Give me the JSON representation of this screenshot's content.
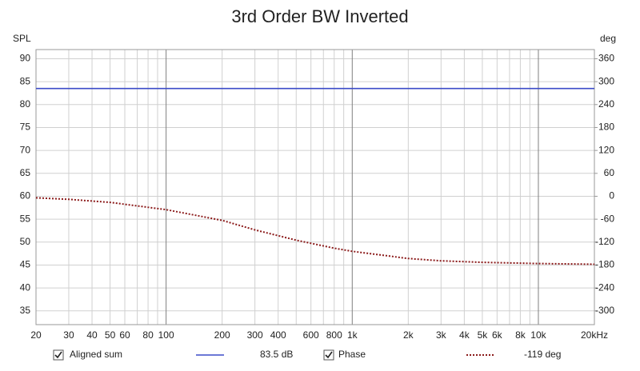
{
  "chart_data": {
    "type": "line",
    "title": "3rd Order BW Inverted",
    "y_label": "SPL",
    "y2_label": "deg",
    "log_x": true,
    "xlim": [
      20,
      20000
    ],
    "xticks": [
      20,
      30,
      40,
      50,
      60,
      80,
      100,
      200,
      300,
      400,
      600,
      800,
      {
        "value": 1000,
        "label": "1k"
      },
      {
        "value": 2000,
        "label": "2k"
      },
      {
        "value": 3000,
        "label": "3k"
      },
      {
        "value": 4000,
        "label": "4k"
      },
      {
        "value": 5000,
        "label": "5k"
      },
      {
        "value": 6000,
        "label": "6k"
      },
      {
        "value": 8000,
        "label": "8k"
      },
      {
        "value": 10000,
        "label": "10k"
      },
      {
        "value": 20000,
        "label": "20kHz"
      }
    ],
    "xminorticks": [
      70,
      90,
      500,
      700,
      900,
      7000,
      9000
    ],
    "ylim": [
      32,
      92
    ],
    "yticks": [
      35,
      40,
      45,
      50,
      55,
      60,
      65,
      70,
      75,
      80,
      85,
      90
    ],
    "y2lim": [
      -336,
      384
    ],
    "y2ticks": [
      -300,
      -240,
      -180,
      -120,
      -60,
      0,
      60,
      120,
      180,
      240,
      300,
      360
    ],
    "grid": true,
    "x": [
      20,
      30,
      50,
      100,
      200,
      300,
      500,
      800,
      1000,
      2000,
      3000,
      5000,
      10000,
      20000
    ],
    "series": [
      {
        "name": "Aligned sum",
        "color": "#3b4bc8",
        "readout": "83.5 dB",
        "dash": false,
        "values": [
          83.5,
          83.5,
          83.5,
          83.5,
          83.5,
          83.5,
          83.5,
          83.5,
          83.5,
          83.5,
          83.5,
          83.5,
          83.5,
          83.5
        ]
      },
      {
        "name": "Phase",
        "color": "#8b1a1a",
        "readout": "-119 deg",
        "dash": true,
        "axis": "y2",
        "values": [
          -4,
          -8,
          -16,
          -35,
          -63,
          -88,
          -115,
          -136,
          -144,
          -163,
          -169,
          -173,
          -176,
          -178
        ]
      }
    ]
  }
}
